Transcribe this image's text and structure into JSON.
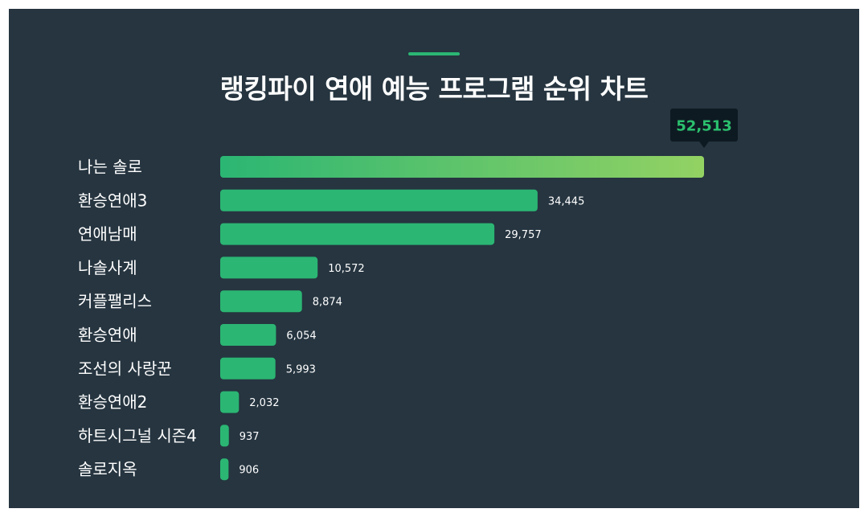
{
  "title": "랭킹파이 연애 예능 프로그램 순위 차트",
  "colors": {
    "background": "#263540",
    "bar": "#2bb673",
    "bar_top_gradient_end": "#93d263",
    "accent": "#2bb673",
    "tooltip_bg": "#0e1a22",
    "tooltip_text": "#2bc06e"
  },
  "chart_data": {
    "type": "bar",
    "orientation": "horizontal",
    "title": "랭킹파이 연애 예능 프로그램 순위 차트",
    "categories": [
      "나는 솔로",
      "환승연애3",
      "연애남매",
      "나솔사계",
      "커플팰리스",
      "환승연애",
      "조선의 사랑꾼",
      "환승연애2",
      "하트시그널 시즌4",
      "솔로지옥"
    ],
    "values": [
      52513,
      34445,
      29757,
      10572,
      8874,
      6054,
      5993,
      2032,
      937,
      906
    ],
    "value_labels": [
      "52,513",
      "34,445",
      "29,757",
      "10,572",
      "8,874",
      "6,054",
      "5,993",
      "2,032",
      "937",
      "906"
    ],
    "highlight": {
      "index": 0,
      "label": "52,513"
    },
    "xlim": [
      0,
      52513
    ],
    "grid": false,
    "legend": false
  }
}
